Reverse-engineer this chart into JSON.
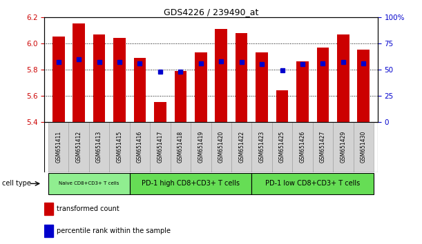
{
  "title": "GDS4226 / 239490_at",
  "samples": [
    "GSM651411",
    "GSM651412",
    "GSM651413",
    "GSM651415",
    "GSM651416",
    "GSM651417",
    "GSM651418",
    "GSM651419",
    "GSM651420",
    "GSM651422",
    "GSM651423",
    "GSM651425",
    "GSM651426",
    "GSM651427",
    "GSM651429",
    "GSM651430"
  ],
  "transformed_count": [
    6.05,
    6.15,
    6.07,
    6.04,
    5.89,
    5.55,
    5.79,
    5.93,
    6.11,
    6.08,
    5.93,
    5.64,
    5.86,
    5.97,
    6.07,
    5.95
  ],
  "percentile_rank": [
    57,
    60,
    57,
    57,
    56,
    48,
    48,
    56,
    58,
    57,
    55,
    49,
    55,
    56,
    57,
    56
  ],
  "ylim_left": [
    5.4,
    6.2
  ],
  "ylim_right": [
    0,
    100
  ],
  "yticks_left": [
    5.4,
    5.6,
    5.8,
    6.0,
    6.2
  ],
  "yticks_right": [
    0,
    25,
    50,
    75,
    100
  ],
  "cell_type_groups": [
    {
      "label": "Naive CD8+CD3+ T cells",
      "start": 0,
      "end": 4,
      "color": "#90EE90"
    },
    {
      "label": "PD-1 high CD8+CD3+ T cells",
      "start": 4,
      "end": 10,
      "color": "#66DD55"
    },
    {
      "label": "PD-1 low CD8+CD3+ T cells",
      "start": 10,
      "end": 16,
      "color": "#66DD55"
    }
  ],
  "bar_color": "#CC0000",
  "dot_color": "#0000CC",
  "bar_width": 0.6,
  "tick_label_color_left": "#CC0000",
  "tick_label_color_right": "#0000CC",
  "cell_type_label": "cell type",
  "legend1": "transformed count",
  "legend2": "percentile rank within the sample"
}
